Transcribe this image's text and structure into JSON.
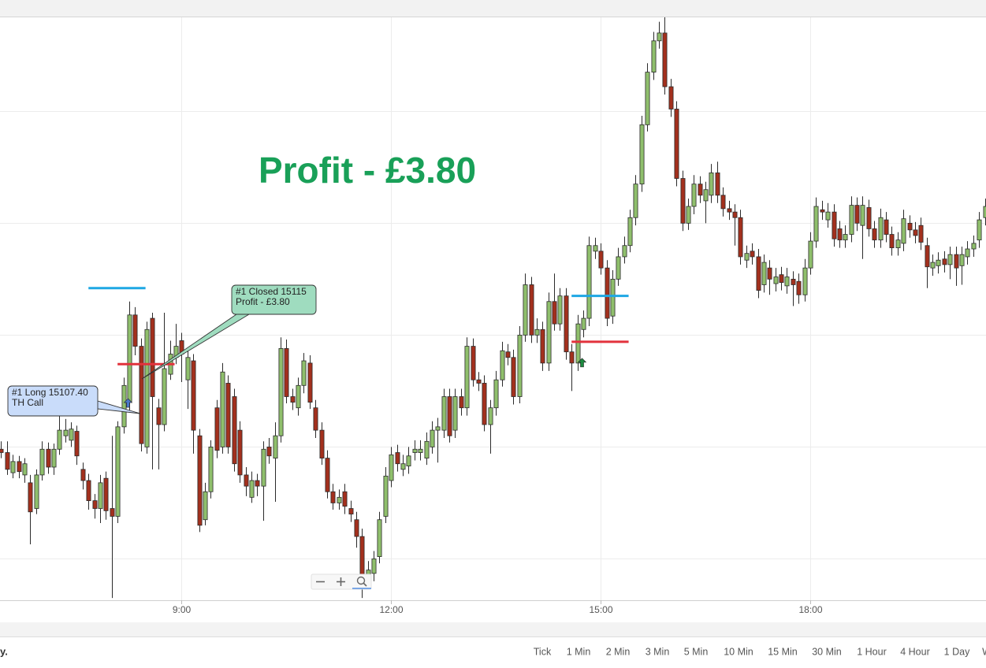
{
  "chart_data": {
    "type": "candlestick",
    "x": [
      385,
      390,
      395,
      400,
      405,
      410,
      415,
      420,
      425,
      430,
      435,
      440,
      445,
      450,
      455,
      460,
      465,
      470,
      475,
      480,
      485,
      490,
      495,
      500,
      505,
      510,
      515,
      520,
      525,
      530,
      535,
      540,
      545,
      550,
      555,
      560,
      565,
      570,
      575,
      580,
      585,
      590,
      595,
      600,
      605,
      610,
      615,
      620,
      625,
      630,
      635,
      640,
      645,
      650,
      655,
      660,
      665,
      670,
      675,
      680,
      685,
      690,
      695,
      700,
      705,
      710,
      715,
      720,
      725,
      730,
      735,
      740,
      745,
      750,
      755,
      760,
      765,
      770,
      775,
      780,
      785,
      790,
      795,
      800,
      805,
      810,
      815,
      820,
      825,
      830,
      835,
      840,
      845,
      850,
      855,
      860,
      865,
      870,
      875,
      880,
      885,
      890,
      895,
      900,
      905,
      910,
      915,
      920,
      925,
      930,
      935,
      940,
      945,
      950,
      955,
      960,
      965,
      970,
      975,
      980,
      985,
      990,
      995,
      1000,
      1005,
      1010,
      1015,
      1020,
      1025,
      1030,
      1035,
      1040,
      1045,
      1050,
      1055,
      1060,
      1065,
      1070,
      1075,
      1080,
      1085,
      1090,
      1095,
      1100,
      1105,
      1110,
      1115,
      1120,
      1125,
      1130,
      1135,
      1140,
      1145,
      1150,
      1155,
      1160,
      1165,
      1170,
      1175,
      1180,
      1185,
      1190,
      1195,
      1200,
      1205,
      1210,
      1215,
      1220,
      1225,
      1230
    ],
    "ohlc": [
      [
        15099.8,
        15100.5,
        15099,
        15099.5
      ],
      [
        15099.5,
        15100.5,
        15097.5,
        15098
      ],
      [
        15097.7,
        15099.3,
        15097.2,
        15098.7
      ],
      [
        15098.7,
        15099.2,
        15097.2,
        15097.8
      ],
      [
        15097.5,
        15099,
        15096.8,
        15098.5
      ],
      [
        15096.8,
        15097.5,
        15091.3,
        15094.2
      ],
      [
        15094.5,
        15098,
        15094,
        15097.5
      ],
      [
        15097.5,
        15100.5,
        15097,
        15099.8
      ],
      [
        15099.8,
        15100.4,
        15097.6,
        15098.2
      ],
      [
        15098.2,
        15100.3,
        15097.5,
        15099.8
      ],
      [
        15099.8,
        15103.5,
        15099.3,
        15101.5
      ],
      [
        15101,
        15102.5,
        15100.4,
        15101.5
      ],
      [
        15100.6,
        15102.2,
        15100,
        15101.6
      ],
      [
        15101.4,
        15101.9,
        15098.4,
        15099.2
      ],
      [
        15098,
        15098.6,
        15096.2,
        15097
      ],
      [
        15097,
        15097.6,
        15094.4,
        15095.2
      ],
      [
        15095.2,
        15095.8,
        15093.6,
        15094.5
      ],
      [
        15094.5,
        15097.5,
        15093.2,
        15096.8
      ],
      [
        15097.2,
        15097.8,
        15093.5,
        15094.3
      ],
      [
        15094.5,
        15101,
        15086.5,
        15093.8
      ],
      [
        15093.8,
        15102.3,
        15093.2,
        15101.8
      ],
      [
        15101.8,
        15106.2,
        15101.2,
        15105.5
      ],
      [
        15104,
        15113,
        15103.2,
        15111.8
      ],
      [
        15111.8,
        15112.5,
        15108.2,
        15109
      ],
      [
        15109,
        15109.7,
        15099.6,
        15100.3
      ],
      [
        15100,
        15111.2,
        15099.4,
        15110.5
      ],
      [
        15111.5,
        15112,
        15098,
        15104.5
      ],
      [
        15103.5,
        15104.3,
        15098,
        15102
      ],
      [
        15102,
        15112,
        15101.4,
        15107
      ],
      [
        15106.5,
        15109.5,
        15106,
        15108.3
      ],
      [
        15108,
        15111,
        15107.4,
        15109
      ],
      [
        15109.5,
        15110.2,
        15105.8,
        15108.3
      ],
      [
        15106,
        15108.8,
        15103.4,
        15108
      ],
      [
        15107.7,
        15108.3,
        15099.4,
        15101.5
      ],
      [
        15101,
        15101.6,
        15092.4,
        15093
      ],
      [
        15093.5,
        15096.8,
        15093,
        15096
      ],
      [
        15096,
        15100.6,
        15095.4,
        15100
      ],
      [
        15103.5,
        15104.2,
        15099,
        15099.7
      ],
      [
        15100,
        15107.5,
        15099.4,
        15106.7
      ],
      [
        15105.7,
        15106.4,
        15099.4,
        15100
      ],
      [
        15104.5,
        15105.2,
        15097.8,
        15098.5
      ],
      [
        15101.5,
        15102.3,
        15096.8,
        15097.5
      ],
      [
        15097.5,
        15098.2,
        15095.6,
        15096.5
      ],
      [
        15095.5,
        15097.8,
        15095,
        15097
      ],
      [
        15097,
        15097.6,
        15095.6,
        15096.5
      ],
      [
        15096.5,
        15100.5,
        15093.4,
        15099.8
      ],
      [
        15100,
        15100.8,
        15098.5,
        15099.2
      ],
      [
        15099,
        15102.2,
        15095.1,
        15101
      ],
      [
        15101,
        15109.8,
        15100.4,
        15108.8
      ],
      [
        15108.8,
        15109.6,
        15103.9,
        15104.5
      ],
      [
        15104.5,
        15105.2,
        15103.3,
        15104
      ],
      [
        15103.5,
        15106.2,
        15102.8,
        15105.5
      ],
      [
        15105.5,
        15108.4,
        15104.8,
        15107.7
      ],
      [
        15107.5,
        15108.2,
        15103.4,
        15104
      ],
      [
        15103.5,
        15104.2,
        15100.8,
        15101.5
      ],
      [
        15101.5,
        15102.2,
        15098.4,
        15099
      ],
      [
        15099,
        15099.7,
        15095.4,
        15096
      ],
      [
        15096,
        15096.7,
        15094.4,
        15095
      ],
      [
        15095,
        15096.2,
        15094.4,
        15095.5
      ],
      [
        15096,
        15096.7,
        15094,
        15094.7
      ],
      [
        15094.5,
        15095.2,
        15093.3,
        15094
      ],
      [
        15093.5,
        15094.2,
        15091,
        15092
      ],
      [
        15092,
        15092.7,
        15086.5,
        15088.2
      ],
      [
        15088,
        15089.8,
        15087.4,
        15089
      ],
      [
        15088.7,
        15090.7,
        15088,
        15090
      ],
      [
        15090.2,
        15094.2,
        15089.6,
        15093.5
      ],
      [
        15093.8,
        15098.2,
        15093.2,
        15097.4
      ],
      [
        15097,
        15100,
        15096.4,
        15099.3
      ],
      [
        15099.5,
        15100.2,
        15097.8,
        15098.5
      ],
      [
        15098,
        15099.3,
        15097.4,
        15098.5
      ],
      [
        15098.3,
        15100,
        15097.6,
        15099.2
      ],
      [
        15099.5,
        15100.6,
        15098.8,
        15099.8
      ],
      [
        15099.5,
        15100.6,
        15098.8,
        15099.8
      ],
      [
        15099,
        15101.3,
        15098.4,
        15100.5
      ],
      [
        15100,
        15102.3,
        15099.4,
        15101.5
      ],
      [
        15101.5,
        15102.6,
        15098.6,
        15101.8
      ],
      [
        15101.5,
        15105.2,
        15100.8,
        15104.5
      ],
      [
        15104.5,
        15105.2,
        15100.4,
        15101
      ],
      [
        15101.5,
        15105.2,
        15100.8,
        15104.5
      ],
      [
        15104.5,
        15105.2,
        15102.8,
        15103.5
      ],
      [
        15103.5,
        15109.8,
        15102.8,
        15109
      ],
      [
        15109,
        15109.7,
        15105.4,
        15106
      ],
      [
        15106,
        15106.7,
        15105,
        15105.7
      ],
      [
        15105.7,
        15106.4,
        15101.4,
        15102
      ],
      [
        15102,
        15104.2,
        15099.4,
        15103.5
      ],
      [
        15103.5,
        15106.8,
        15102.8,
        15106
      ],
      [
        15106,
        15109.4,
        15105.4,
        15108.6
      ],
      [
        15108.5,
        15109.2,
        15107.3,
        15108
      ],
      [
        15108,
        15108.7,
        15103.8,
        15104.5
      ],
      [
        15104.5,
        15110.8,
        15103.9,
        15110
      ],
      [
        15110,
        15115.5,
        15109.4,
        15114.5
      ],
      [
        15114.5,
        15115.2,
        15109.3,
        15110
      ],
      [
        15110,
        15111.5,
        15109.3,
        15110.5
      ],
      [
        15110.5,
        15111.2,
        15106.8,
        15107.5
      ],
      [
        15107.5,
        15113.8,
        15106.8,
        15113
      ],
      [
        15113,
        15115.5,
        15110.4,
        15111
      ],
      [
        15111,
        15114.2,
        15110.4,
        15113.5
      ],
      [
        15113.5,
        15114.2,
        15107.8,
        15108.5
      ],
      [
        15108.5,
        15109.2,
        15105,
        15107.5
      ],
      [
        15107.5,
        15111.8,
        15106.8,
        15111
      ],
      [
        15110.5,
        15112.2,
        15109.8,
        15111.5
      ],
      [
        15111.5,
        15118.8,
        15110.8,
        15118
      ],
      [
        15117.5,
        15118.7,
        15116.8,
        15118
      ],
      [
        15117.5,
        15118.2,
        15115.4,
        15116
      ],
      [
        15116,
        15116.7,
        15110.8,
        15111.5
      ],
      [
        15111.7,
        15115.8,
        15111,
        15115
      ],
      [
        15115,
        15117.8,
        15114.4,
        15117
      ],
      [
        15117,
        15118.8,
        15116.4,
        15118
      ],
      [
        15118,
        15121.2,
        15117.4,
        15120.5
      ],
      [
        15120.5,
        15124.3,
        15119.8,
        15123.5
      ],
      [
        15123.5,
        15129.6,
        15122.8,
        15128.8
      ],
      [
        15128.8,
        15134.3,
        15128.2,
        15133.5
      ],
      [
        15133.5,
        15137.1,
        15132.8,
        15136.3
      ],
      [
        15136.3,
        15138,
        15135.6,
        15137
      ],
      [
        15137,
        15138.5,
        15131.5,
        15132.2
      ],
      [
        15132.2,
        15132.9,
        15129.5,
        15130.2
      ],
      [
        15130.2,
        15130.9,
        15123.3,
        15124
      ],
      [
        15124,
        15124.7,
        15119.3,
        15120
      ],
      [
        15120,
        15122.2,
        15119.4,
        15121.5
      ],
      [
        15121.5,
        15124.3,
        15120.8,
        15123.5
      ],
      [
        15123.5,
        15124.2,
        15121.8,
        15122.5
      ],
      [
        15122,
        15123.7,
        15120,
        15123
      ],
      [
        15122.5,
        15125.3,
        15121.8,
        15124.5
      ],
      [
        15124.5,
        15125.5,
        15121.8,
        15122.5
      ],
      [
        15122.5,
        15123.2,
        15120.6,
        15121.3
      ],
      [
        15121.3,
        15122,
        15120.3,
        15121
      ],
      [
        15121,
        15121.7,
        15118,
        15120.5
      ],
      [
        15120.5,
        15121.2,
        15116.3,
        15117
      ],
      [
        15116.7,
        15118,
        15116,
        15117.3
      ],
      [
        15117.5,
        15118.2,
        15116.3,
        15117
      ],
      [
        15117,
        15117.7,
        15113.3,
        15114
      ],
      [
        15114.5,
        15117.2,
        15113.8,
        15116.5
      ],
      [
        15116,
        15116.7,
        15113.6,
        15115
      ],
      [
        15114.6,
        15116,
        15113.9,
        15115.2
      ],
      [
        15115.4,
        15116.1,
        15114,
        15114.7
      ],
      [
        15114.4,
        15116,
        15113.7,
        15115.2
      ],
      [
        15115,
        15115.7,
        15112.6,
        15114.5
      ],
      [
        15114.8,
        15115.5,
        15112.8,
        15113.6
      ],
      [
        15113.6,
        15116.8,
        15113,
        15116
      ],
      [
        15116,
        15119.2,
        15115.4,
        15118.4
      ],
      [
        15118.4,
        15122.3,
        15117.8,
        15121.5
      ],
      [
        15121.2,
        15122,
        15120.3,
        15121
      ],
      [
        15120.3,
        15121.8,
        15119.6,
        15121
      ],
      [
        15121,
        15121.7,
        15117.9,
        15118.6
      ],
      [
        15119.5,
        15120.2,
        15117.8,
        15118.5
      ],
      [
        15118.5,
        15119.8,
        15117.8,
        15119
      ],
      [
        15119,
        15122.4,
        15118.3,
        15121.6
      ],
      [
        15121.6,
        15122.3,
        15119.3,
        15120
      ],
      [
        15119.8,
        15122.4,
        15116.8,
        15121.6
      ],
      [
        15121.4,
        15122.1,
        15118.8,
        15119.5
      ],
      [
        15119.5,
        15120.2,
        15117.8,
        15118.5
      ],
      [
        15118.5,
        15121.3,
        15117.8,
        15120.5
      ],
      [
        15120.3,
        15121,
        15118.3,
        15119
      ],
      [
        15119,
        15119.7,
        15117.1,
        15117.8
      ],
      [
        15117.8,
        15119.2,
        15117.1,
        15118.5
      ],
      [
        15118.2,
        15121.2,
        15117.5,
        15120.4
      ],
      [
        15120,
        15120.7,
        15118.7,
        15119.4
      ],
      [
        15119.4,
        15120.1,
        15118.2,
        15118.9
      ],
      [
        15119.8,
        15120.5,
        15117.6,
        15118.3
      ],
      [
        15118,
        15118.7,
        15114.2,
        15116.1
      ],
      [
        15116,
        15117.2,
        15115.3,
        15116.5
      ],
      [
        15116.2,
        15117.4,
        15115.5,
        15116.7
      ],
      [
        15116.8,
        15117.5,
        15115.6,
        15116.3
      ],
      [
        15116.3,
        15117.9,
        15115,
        15117.2
      ],
      [
        15117.2,
        15117.9,
        15114.4,
        15116
      ],
      [
        15116.2,
        15117.9,
        15114.5,
        15117.2
      ],
      [
        15117,
        15118.4,
        15116.3,
        15117.7
      ],
      [
        15117.7,
        15118.9,
        15117,
        15118.2
      ],
      [
        15118.5,
        15121,
        15117.8,
        15120.3
      ],
      [
        15120.5,
        15122.2,
        15119.8,
        15121.5
      ]
    ],
    "up_color": "#8fbf6c",
    "down_color": "#a3301d",
    "wick_color": "#2b2b2b",
    "xlim": [
      384,
      1231
    ],
    "ylim": [
      15086.3,
      15138.4
    ],
    "xticks": [
      {
        "value": 540,
        "label": "9:00"
      },
      {
        "value": 720,
        "label": "12:00"
      },
      {
        "value": 900,
        "label": "15:00"
      },
      {
        "value": 1080,
        "label": "18:00"
      }
    ],
    "yticks": [
      15090,
      15100,
      15110,
      15120,
      15130
    ],
    "grid": true,
    "annotation": "Profit - £3.80",
    "annotation_color": "#19a058",
    "levels": [
      {
        "value": 15114.2,
        "x": [
          460,
          509
        ],
        "color": "#1ea7e4"
      },
      {
        "value": 15107.4,
        "x": [
          485,
          534
        ],
        "color": "#e2323c"
      },
      {
        "value": 15113.5,
        "x": [
          875,
          924
        ],
        "color": "#1ea7e4"
      },
      {
        "value": 15109.4,
        "x": [
          875,
          924
        ],
        "color": "#e2323c"
      }
    ],
    "markers": [
      {
        "x": 494,
        "y": 15103.9,
        "color": "#4a78c8"
      },
      {
        "x": 884,
        "y": 15107.5,
        "color": "#1c8a40"
      }
    ],
    "callouts": [
      {
        "lines": [
          "#1 Long 15107.40",
          "TH Call"
        ],
        "color": "#c9dcfa"
      },
      {
        "lines": [
          "#1 Closed 15115",
          "Profit - £3.80"
        ],
        "color": "#9fdcbf"
      }
    ]
  },
  "toolbar": {
    "left_text": "y.",
    "timeframes": [
      "Tick",
      "1 Min",
      "2 Min",
      "3 Min",
      "5 Min",
      "10 Min",
      "15 Min",
      "30 Min",
      "1 Hour",
      "4 Hour",
      "1 Day",
      "W"
    ]
  }
}
